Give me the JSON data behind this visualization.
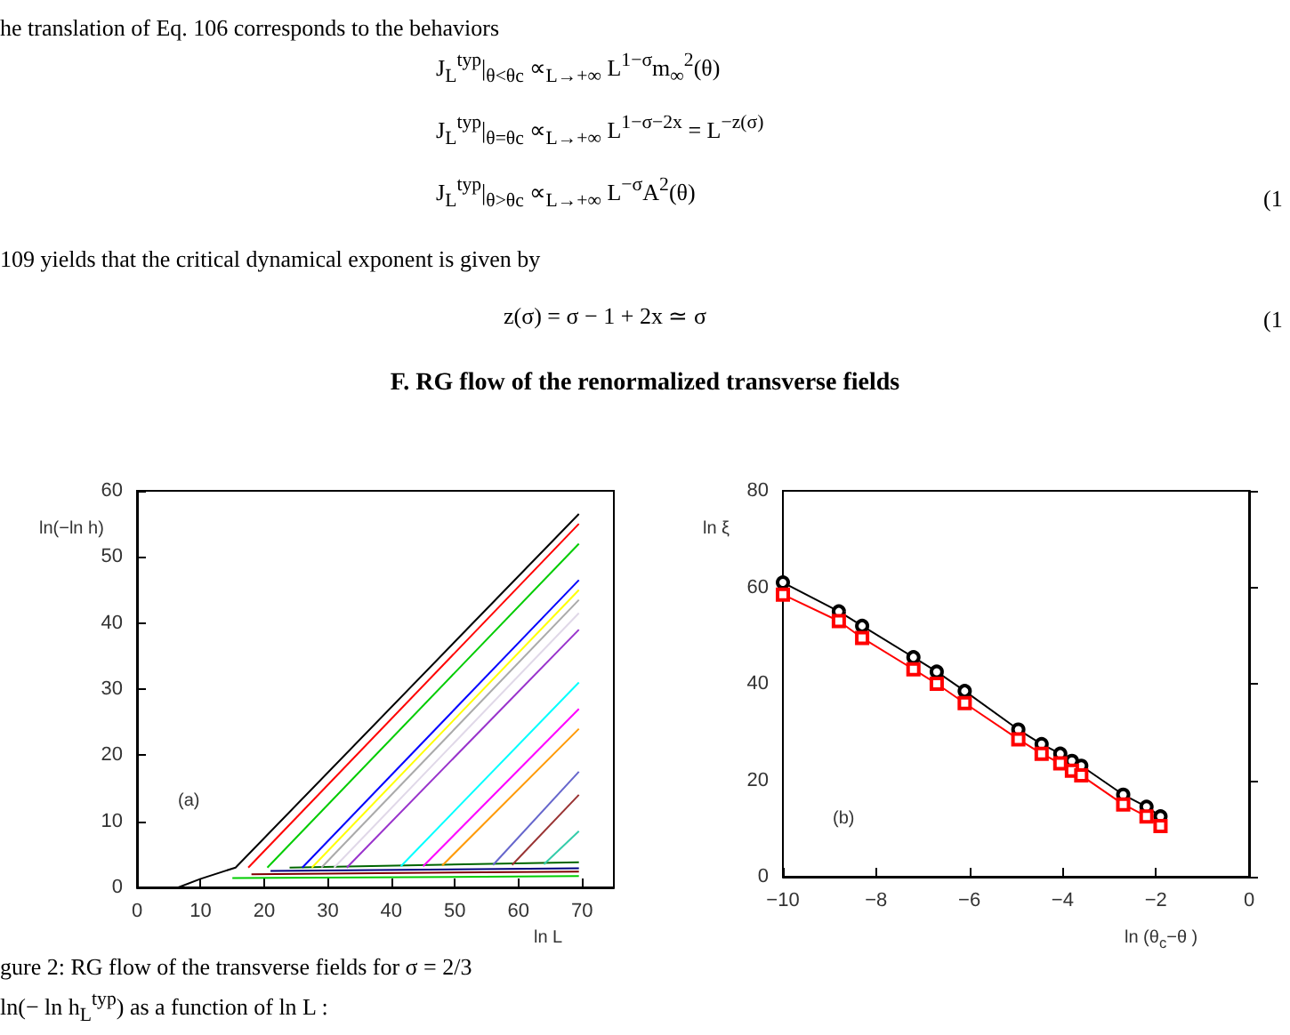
{
  "chart_data": [
    {
      "type": "other",
      "title": "F.    RG flow of the renormalized transverse fields",
      "annotations": [
        "he translation of Eq. 106 corresponds to the behaviors",
        "J$_{L}$$^{typ}$|$_{θ<θc}$      ∝$_{L→+∞}$  L$^{1−σ}$m$_{∞}$$^{2}$(θ)",
        "J$_{L}$$^{typ}$|$_{θ=θc}$      ∝$_{L→+∞}$  L$^{1−σ−2x}$ = L$^{−z(σ)}$",
        "J$_{L}$$^{typ}$|$_{θ>θc}$      ∝$_{L→+∞}$  L$^{−σ}$A$^{2}$(θ)",
        "(1",
        "109 yields that the critical dynamical exponent is given by",
        "z(σ) = σ − 1 + 2x ≃ σ",
        "(1",
        "gure 2:   RG flow of the transverse fields for σ = 2/3",
        "ln(− ln h$_{L}$$^{typ}$) as a function of ln L :"
      ]
    },
    {
      "type": "line",
      "xlabel": "ln L",
      "ylabel": "ln(−ln h)",
      "annotations": [
        "(a)"
      ],
      "xlim": [
        0,
        75
      ],
      "xticks": [
        0,
        10,
        20,
        30,
        40,
        50,
        60,
        70
      ],
      "ylim": [
        0,
        60
      ],
      "yticks": [
        0,
        10,
        20,
        30,
        40,
        50,
        60
      ],
      "marker": "none",
      "series": [
        {
          "color": "#00cc00",
          "x": [
            15,
            69.5
          ],
          "values": [
            1.4,
            1.7
          ]
        },
        {
          "color": "#800000",
          "x": [
            18,
            69.5
          ],
          "values": [
            2,
            2.4
          ]
        },
        {
          "color": "#000080",
          "x": [
            21,
            69.5
          ],
          "values": [
            2.5,
            2.9
          ]
        },
        {
          "color": "#006600",
          "x": [
            24,
            69.5
          ],
          "values": [
            3,
            3.8
          ]
        },
        {
          "color": "#33ccaa",
          "x": [
            64,
            69.5
          ],
          "values": [
            3.5,
            8.5
          ]
        },
        {
          "color": "#993333",
          "x": [
            59,
            69.5
          ],
          "values": [
            3.4,
            14
          ]
        },
        {
          "color": "#6666cc",
          "x": [
            56,
            69.5
          ],
          "values": [
            3.4,
            17.5
          ]
        },
        {
          "color": "#ff9900",
          "x": [
            48,
            69.5
          ],
          "values": [
            3.3,
            24
          ]
        },
        {
          "color": "#ff00ff",
          "x": [
            45,
            69.5
          ],
          "values": [
            3.2,
            27
          ]
        },
        {
          "color": "#00ffff",
          "x": [
            41.5,
            69.5
          ],
          "values": [
            3.2,
            31
          ]
        },
        {
          "color": "#9933cc",
          "x": [
            33,
            69.5
          ],
          "values": [
            3,
            39
          ]
        },
        {
          "color": "#e0d8e8",
          "x": [
            31,
            69.5
          ],
          "values": [
            3,
            41.5
          ]
        },
        {
          "color": "#aaaaaa",
          "x": [
            29,
            69.5
          ],
          "values": [
            3,
            43.5
          ]
        },
        {
          "color": "#ffff00",
          "x": [
            27.5,
            69.5
          ],
          "values": [
            3,
            45
          ]
        },
        {
          "color": "#0000ff",
          "x": [
            26,
            69.5
          ],
          "values": [
            3,
            46.5
          ]
        },
        {
          "color": "#00cc00",
          "x": [
            20.5,
            69.5
          ],
          "values": [
            3,
            52
          ]
        },
        {
          "color": "#ff0000",
          "x": [
            17.5,
            69.5
          ],
          "values": [
            3,
            55
          ]
        },
        {
          "color": "#000000",
          "x": [
            6.5,
            10,
            15.5,
            69.5
          ],
          "values": [
            0,
            1.3,
            3,
            56.5
          ]
        }
      ]
    },
    {
      "type": "line",
      "xlabel": "ln (θ$_{c}$−θ )",
      "ylabel": "ln ξ",
      "annotations": [
        "(b)"
      ],
      "xlim": [
        -10,
        0
      ],
      "xticks": [
        -10,
        -8,
        -6,
        -4,
        -2,
        0
      ],
      "ylim": [
        0,
        80
      ],
      "yticks": [
        0,
        20,
        40,
        60,
        80
      ],
      "series": [
        {
          "color": "#000000",
          "marker": "circle",
          "x": [
            -10,
            -8.8,
            -8.3,
            -7.2,
            -6.7,
            -6.1,
            -4.95,
            -4.45,
            -4.05,
            -3.8,
            -3.6,
            -2.7,
            -2.2,
            -1.9
          ],
          "values": [
            61,
            55,
            52,
            45.5,
            42.5,
            38.5,
            30.5,
            27.5,
            25.5,
            24,
            23,
            17,
            14.5,
            12.5
          ]
        },
        {
          "color": "#ff0000",
          "marker": "square",
          "x": [
            -10,
            -8.8,
            -8.3,
            -7.2,
            -6.7,
            -6.1,
            -4.95,
            -4.45,
            -4.05,
            -3.8,
            -3.6,
            -2.7,
            -2.2,
            -1.9
          ],
          "values": [
            58.5,
            53,
            49.5,
            43,
            40,
            36,
            28.5,
            25.5,
            23.5,
            22,
            21,
            15,
            12.5,
            10.5
          ]
        }
      ]
    }
  ]
}
